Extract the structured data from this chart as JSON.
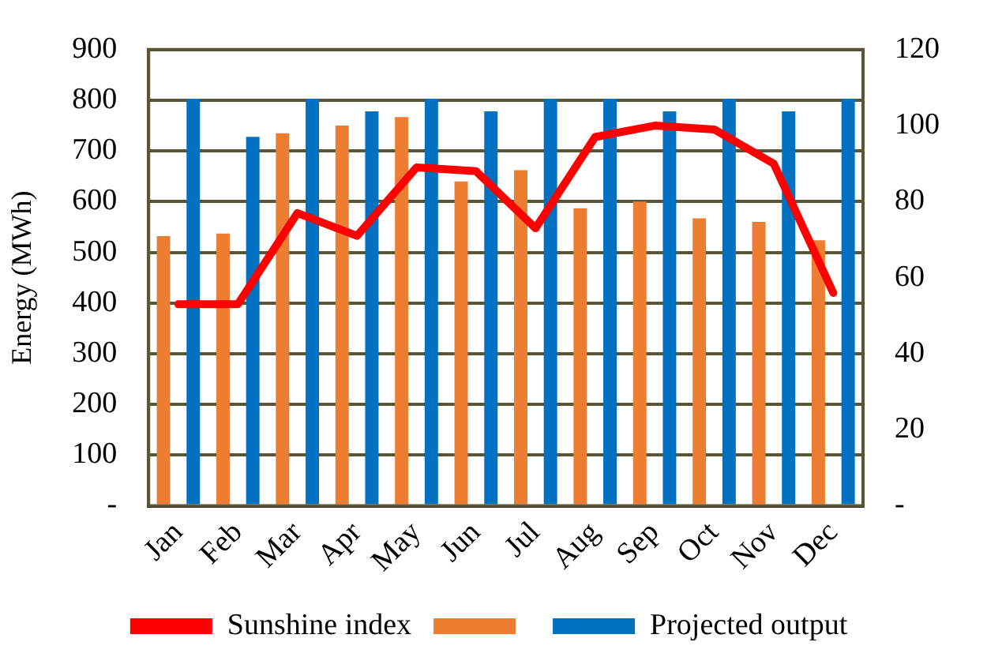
{
  "chart_data": {
    "type": "bar",
    "ylabel": "Energy (MWh)",
    "categories": [
      "Jan",
      "Feb",
      "Mar",
      "Apr",
      "May",
      "Jun",
      "Jul",
      "Aug",
      "Sep",
      "Oct",
      "Nov",
      "Dec"
    ],
    "series": [
      {
        "color": "#ed7d31",
        "values": [
          532,
          537,
          735,
          750,
          767,
          640,
          662,
          587,
          600,
          567,
          560,
          524
        ]
      },
      {
        "name": "Projected output",
        "color": "#0070c0",
        "values": [
          803,
          728,
          803,
          778,
          803,
          778,
          803,
          803,
          778,
          803,
          778,
          803
        ]
      },
      {
        "name": "Sunshine index",
        "type": "line",
        "axis": "y2",
        "color": "#ff0000",
        "values": [
          53,
          53,
          77,
          71,
          89,
          88,
          73,
          97,
          100,
          99,
          90,
          56
        ]
      }
    ],
    "ylim": [
      0,
      900
    ],
    "yticks": [
      {
        "value": 0,
        "label": "-"
      },
      100,
      200,
      300,
      400,
      500,
      600,
      700,
      800,
      900
    ],
    "y2lim": [
      0,
      120
    ],
    "y2ticks": [
      {
        "value": 0,
        "label": "-"
      },
      20,
      40,
      60,
      80,
      100,
      120
    ],
    "grid": "y",
    "legend": "bottom",
    "marker": "none",
    "line_style": "solid"
  }
}
